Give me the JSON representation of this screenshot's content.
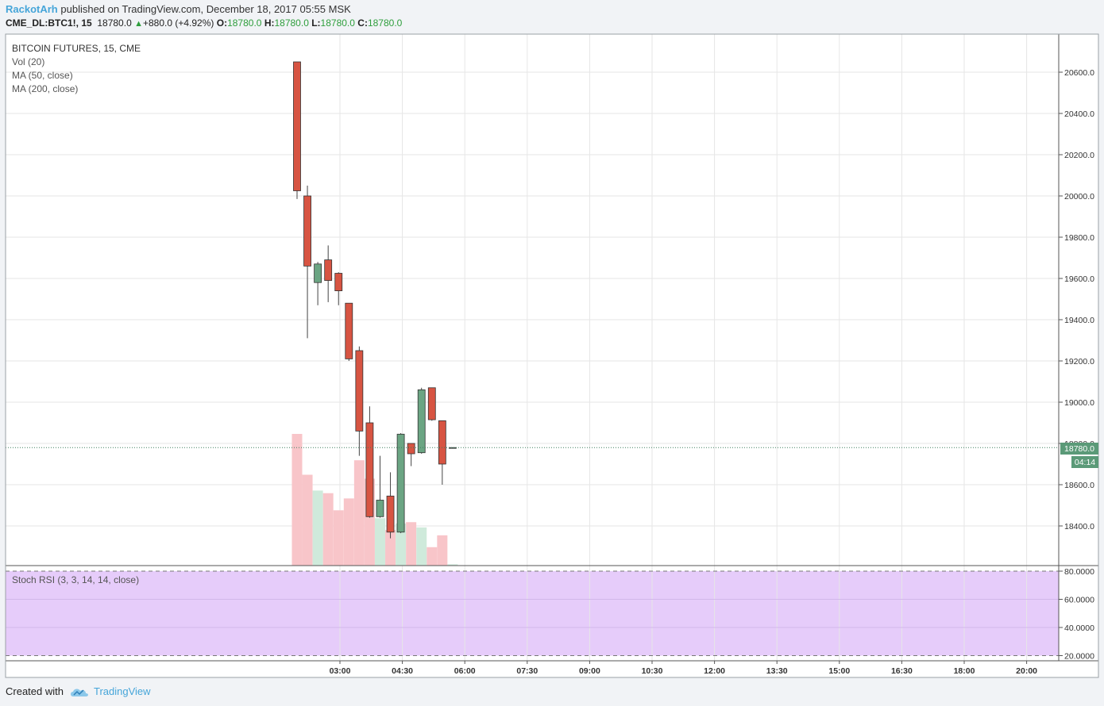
{
  "header": {
    "author": "RackotArh",
    "published_text": "published on TradingView.com, December 18, 2017 05:55 MSK",
    "symbol": "CME_DL:BTC1!, 15",
    "price": "18780.0",
    "change": "+880.0 (+4.92%)",
    "open_label": "O:",
    "open_value": "18780.0",
    "high_label": "H:",
    "high_value": "18780.0",
    "low_label": "L:",
    "low_value": "18780.0",
    "close_label": "C:",
    "close_value": "18780.0"
  },
  "legend": [
    "BITCOIN FUTURES, 15, CME",
    "Vol (20)",
    "MA (50, close)",
    "MA (200, close)"
  ],
  "indicator_label": "Stoch RSI (3, 3, 14, 14, close)",
  "price_marker": "18780.0",
  "countdown": "04:14",
  "footer": {
    "created_with": "Created with",
    "brand": "TradingView"
  },
  "colors": {
    "up": "#6ba583",
    "down": "#d75442",
    "vol_up": "#cfeadb",
    "vol_down": "#f8c5c9",
    "stoch_band": "#e6ccfa",
    "brand": "#45a5d9"
  },
  "chart_data": {
    "type": "candlestick",
    "title": "BITCOIN FUTURES, 15, CME",
    "timeframe": "15",
    "x_ticks": [
      "03:00",
      "04:30",
      "06:00",
      "07:30",
      "09:00",
      "10:30",
      "12:00",
      "13:30",
      "15:00",
      "16:30",
      "18:00",
      "20:00"
    ],
    "y_ticks": [
      18400,
      18600,
      18800,
      19000,
      19200,
      19400,
      19600,
      19800,
      20000,
      20200,
      20400,
      20600
    ],
    "ylim": [
      18200,
      20800
    ],
    "last_price": 18780.0,
    "candles": [
      {
        "o": 20650,
        "h": 20650,
        "l": 19985,
        "c": 20025,
        "vol": 100
      },
      {
        "o": 20000,
        "h": 20050,
        "l": 19310,
        "c": 19660,
        "vol": 69
      },
      {
        "o": 19580,
        "h": 19680,
        "l": 19470,
        "c": 19670,
        "vol": 57
      },
      {
        "o": 19690,
        "h": 19760,
        "l": 19485,
        "c": 19590,
        "vol": 55
      },
      {
        "o": 19625,
        "h": 19630,
        "l": 19470,
        "c": 19540,
        "vol": 42
      },
      {
        "o": 19480,
        "h": 19480,
        "l": 19200,
        "c": 19210,
        "vol": 51
      },
      {
        "o": 19250,
        "h": 19270,
        "l": 18740,
        "c": 18860,
        "vol": 80
      },
      {
        "o": 18900,
        "h": 18980,
        "l": 18440,
        "c": 18445,
        "vol": 66
      },
      {
        "o": 18445,
        "h": 18740,
        "l": 18440,
        "c": 18525,
        "vol": 36
      },
      {
        "o": 18545,
        "h": 18660,
        "l": 18340,
        "c": 18370,
        "vol": 27
      },
      {
        "o": 18370,
        "h": 18850,
        "l": 18365,
        "c": 18845,
        "vol": 32
      },
      {
        "o": 18800,
        "h": 18800,
        "l": 18690,
        "c": 18750,
        "vol": 33
      },
      {
        "o": 18755,
        "h": 19070,
        "l": 18750,
        "c": 19060,
        "vol": 29
      },
      {
        "o": 19070,
        "h": 19070,
        "l": 18910,
        "c": 18915,
        "vol": 14
      },
      {
        "o": 18910,
        "h": 18910,
        "l": 18600,
        "c": 18700,
        "vol": 23
      },
      {
        "o": 18780,
        "h": 18780,
        "l": 18780,
        "c": 18780,
        "vol": 1
      }
    ],
    "stoch_rsi": {
      "label": "Stoch RSI (3, 3, 14, 14, close)",
      "y_ticks": [
        "80.0000",
        "60.0000",
        "40.0000",
        "20.0000"
      ],
      "upper_band": 80,
      "lower_band": 20
    }
  }
}
